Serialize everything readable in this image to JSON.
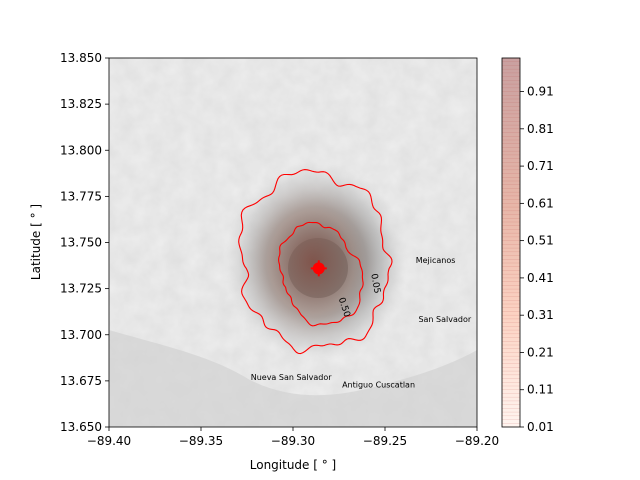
{
  "chart_data": {
    "type": "heatmap",
    "title": "",
    "xlabel": "Longitude [$^\\circ$]",
    "xlabel_display": "Longitude [ ° ]",
    "ylabel": "Latitude [$^\\circ$]",
    "ylabel_display": "Latitude [ ° ]",
    "xlim": [
      -89.4,
      -89.2
    ],
    "ylim": [
      13.65,
      13.85
    ],
    "xticks": [
      -89.4,
      -89.35,
      -89.3,
      -89.25,
      -89.2
    ],
    "xtick_labels": [
      "−89.40",
      "−89.35",
      "−89.30",
      "−89.25",
      "−89.20"
    ],
    "yticks": [
      13.65,
      13.675,
      13.7,
      13.725,
      13.75,
      13.775,
      13.8,
      13.825,
      13.85
    ],
    "ytick_labels": [
      "13.650",
      "13.675",
      "13.700",
      "13.725",
      "13.750",
      "13.775",
      "13.800",
      "13.825",
      "13.850"
    ],
    "colorbar": {
      "ticks": [
        0.01,
        0.11,
        0.21,
        0.31,
        0.41,
        0.51,
        0.61,
        0.71,
        0.81,
        0.91
      ],
      "tick_labels": [
        "0.01",
        "0.11",
        "0.21",
        "0.31",
        "0.41",
        "0.51",
        "0.61",
        "0.71",
        "0.81",
        "0.91"
      ],
      "range": [
        0.01,
        1.0
      ],
      "colormap": "Reds"
    },
    "vent": {
      "lon": -89.286,
      "lat": 13.736
    },
    "contours": [
      {
        "label": "0.05",
        "label_lon": -89.2565,
        "label_lat": 13.7275,
        "label_rotation": 80
      },
      {
        "label": "0.50",
        "label_lon": -89.2735,
        "label_lat": 13.7145,
        "label_rotation": 72
      }
    ],
    "place_labels": [
      {
        "name": "Mejicanos",
        "lon": -89.2225,
        "lat": 13.7405
      },
      {
        "name": "San Salvador",
        "lon": -89.2175,
        "lat": 13.7085
      },
      {
        "name": "Nueva San Salvador",
        "lon": -89.301,
        "lat": 13.677
      },
      {
        "name": "Antiguo Cuscatlan",
        "lon": -89.2535,
        "lat": 13.673
      }
    ],
    "grid": false
  },
  "colors": {
    "contour": "#ff0000",
    "vent": "#ff0000",
    "axes": "#000000"
  }
}
